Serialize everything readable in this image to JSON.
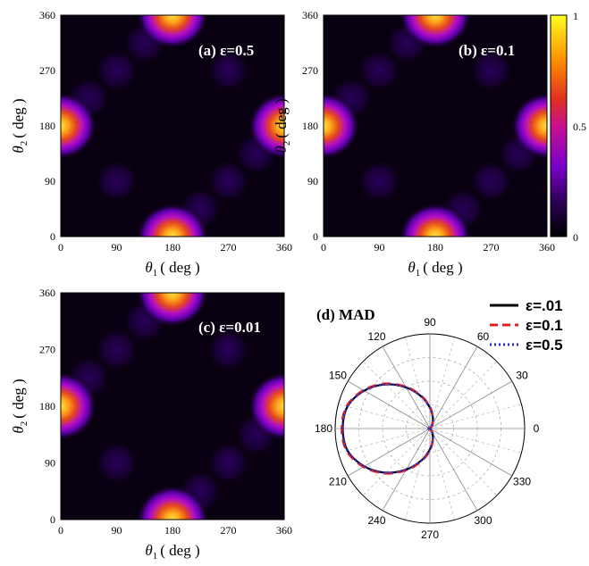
{
  "chart_data": [
    {
      "type": "heatmap",
      "panel_label": "(a) ε=0.5",
      "xlabel": {
        "sym": "θ",
        "sub": "1",
        "unit": "( deg )"
      },
      "ylabel": {
        "sym": "θ",
        "sub": "2",
        "unit": "( deg )"
      },
      "x_ticks": [
        "0",
        "90",
        "180",
        "270",
        "360"
      ],
      "y_ticks": [
        "0",
        "90",
        "180",
        "270",
        "360"
      ],
      "xlim": [
        0,
        360
      ],
      "ylim": [
        0,
        360
      ],
      "peaks": [
        {
          "x": 180,
          "y": 0,
          "value": 1.0
        },
        {
          "x": 180,
          "y": 360,
          "value": 1.0
        },
        {
          "x": 0,
          "y": 180,
          "value": 1.0
        },
        {
          "x": 360,
          "y": 180,
          "value": 1.0
        }
      ]
    },
    {
      "type": "heatmap",
      "panel_label": "(b) ε=0.1",
      "xlabel": {
        "sym": "θ",
        "sub": "1",
        "unit": "( deg )"
      },
      "ylabel": {
        "sym": "θ",
        "sub": "2",
        "unit": "( deg )"
      },
      "x_ticks": [
        "0",
        "90",
        "180",
        "270",
        "360"
      ],
      "y_ticks": [
        "0",
        "90",
        "180",
        "270",
        "360"
      ],
      "xlim": [
        0,
        360
      ],
      "ylim": [
        0,
        360
      ],
      "colorbar": {
        "ticks": [
          "0",
          "0.5",
          "1"
        ],
        "range": [
          0,
          1
        ]
      },
      "peaks": [
        {
          "x": 180,
          "y": 0,
          "value": 1.0
        },
        {
          "x": 180,
          "y": 360,
          "value": 1.0
        },
        {
          "x": 0,
          "y": 180,
          "value": 1.0
        },
        {
          "x": 360,
          "y": 180,
          "value": 1.0
        }
      ]
    },
    {
      "type": "heatmap",
      "panel_label": "(c) ε=0.01",
      "xlabel": {
        "sym": "θ",
        "sub": "1",
        "unit": "( deg )"
      },
      "ylabel": {
        "sym": "θ",
        "sub": "2",
        "unit": "( deg )"
      },
      "x_ticks": [
        "0",
        "90",
        "180",
        "270",
        "360"
      ],
      "y_ticks": [
        "0",
        "90",
        "180",
        "270",
        "360"
      ],
      "xlim": [
        0,
        360
      ],
      "ylim": [
        0,
        360
      ],
      "peaks": [
        {
          "x": 180,
          "y": 0,
          "value": 1.0
        },
        {
          "x": 180,
          "y": 360,
          "value": 1.0
        },
        {
          "x": 0,
          "y": 180,
          "value": 1.0
        },
        {
          "x": 360,
          "y": 180,
          "value": 1.0
        }
      ]
    },
    {
      "type": "line",
      "polar": true,
      "panel_label": "(d) MAD",
      "angle_ticks": [
        "0",
        "30",
        "60",
        "90",
        "120",
        "150",
        "180",
        "210",
        "240",
        "270",
        "300",
        "330"
      ],
      "series": [
        {
          "name": "ε=.01",
          "color": "#000000",
          "style": "solid",
          "angles": [
            0,
            15,
            30,
            45,
            60,
            75,
            90,
            105,
            120,
            135,
            150,
            165,
            180,
            195,
            210,
            225,
            240,
            255,
            270,
            285,
            300,
            315,
            330,
            345
          ],
          "values": [
            0.01,
            0.0,
            0.0,
            0.01,
            0.05,
            0.12,
            0.22,
            0.35,
            0.5,
            0.66,
            0.8,
            0.9,
            0.92,
            0.9,
            0.8,
            0.66,
            0.5,
            0.35,
            0.22,
            0.12,
            0.05,
            0.01,
            0.0,
            0.0
          ]
        },
        {
          "name": "ε=0.1",
          "color": "#e02020",
          "style": "dashed",
          "angles": [
            0,
            15,
            30,
            45,
            60,
            75,
            90,
            105,
            120,
            135,
            150,
            165,
            180,
            195,
            210,
            225,
            240,
            255,
            270,
            285,
            300,
            315,
            330,
            345
          ],
          "values": [
            0.01,
            0.0,
            0.0,
            0.01,
            0.05,
            0.12,
            0.23,
            0.36,
            0.51,
            0.67,
            0.81,
            0.91,
            0.93,
            0.91,
            0.81,
            0.67,
            0.51,
            0.36,
            0.23,
            0.12,
            0.05,
            0.01,
            0.0,
            0.0
          ]
        },
        {
          "name": "ε=0.5",
          "color": "#1f2fd0",
          "style": "dotted",
          "angles": [
            0,
            15,
            30,
            45,
            60,
            75,
            90,
            105,
            120,
            135,
            150,
            165,
            180,
            195,
            210,
            225,
            240,
            255,
            270,
            285,
            300,
            315,
            330,
            345
          ],
          "values": [
            0.01,
            0.0,
            0.0,
            0.01,
            0.05,
            0.12,
            0.22,
            0.35,
            0.5,
            0.66,
            0.8,
            0.9,
            0.92,
            0.9,
            0.8,
            0.66,
            0.5,
            0.35,
            0.22,
            0.12,
            0.05,
            0.01,
            0.0,
            0.0
          ]
        }
      ]
    }
  ]
}
